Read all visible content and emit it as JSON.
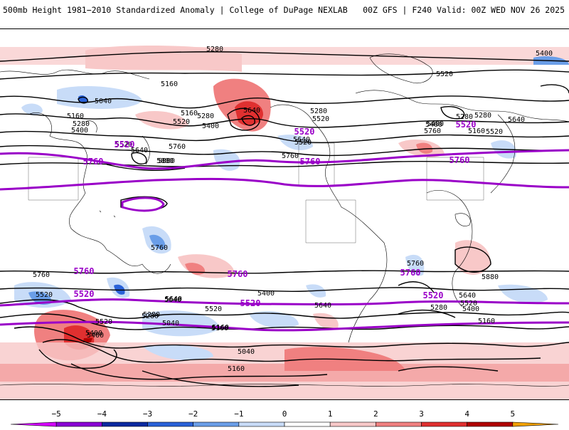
{
  "header": {
    "title": "500mb Height 1981−2010 Standardized Anomaly | College of DuPage NEXLAB",
    "run_info": "00Z GFS | F240 Valid: 00Z WED NOV 26 2025"
  },
  "contour_labels": [
    "5280",
    "5160",
    "5040",
    "5160",
    "5280",
    "5400",
    "5520",
    "5640",
    "5760",
    "5880",
    "5280",
    "5160",
    "5520",
    "5400",
    "5640",
    "5520",
    "5400",
    "5280",
    "5520",
    "5640",
    "5760",
    "5520",
    "5400",
    "5280",
    "5160",
    "5280",
    "5640",
    "5400",
    "5520",
    "5760",
    "5880",
    "5760",
    "5640",
    "5520",
    "5400",
    "5280",
    "5160",
    "5040",
    "5400",
    "5520",
    "5640",
    "5760",
    "5640",
    "5520",
    "5400",
    "5280",
    "5160",
    "5040",
    "5160",
    "5760",
    "5880",
    "5640",
    "5520",
    "5400",
    "5280",
    "5160"
  ],
  "highlight_labels": [
    "5520",
    "5760",
    "5520",
    "5760",
    "5520",
    "5760",
    "5760",
    "5760",
    "5520",
    "5520",
    "5520",
    "5760"
  ],
  "colorbar": {
    "ticks": [
      "−5",
      "−4",
      "−3",
      "−2",
      "−1",
      "0",
      "1",
      "2",
      "3",
      "4",
      "5"
    ],
    "colors": [
      "#d400ff",
      "#8a00d4",
      "#0a2aa0",
      "#2a62d8",
      "#6a9ee8",
      "#c8dcf8",
      "#ffffff",
      "#f8c8c8",
      "#f08080",
      "#e03030",
      "#b00000",
      "#f0a000"
    ]
  },
  "colors": {
    "contour": "#000000",
    "highlight": "#9a00c8",
    "coastline": "#000000"
  }
}
